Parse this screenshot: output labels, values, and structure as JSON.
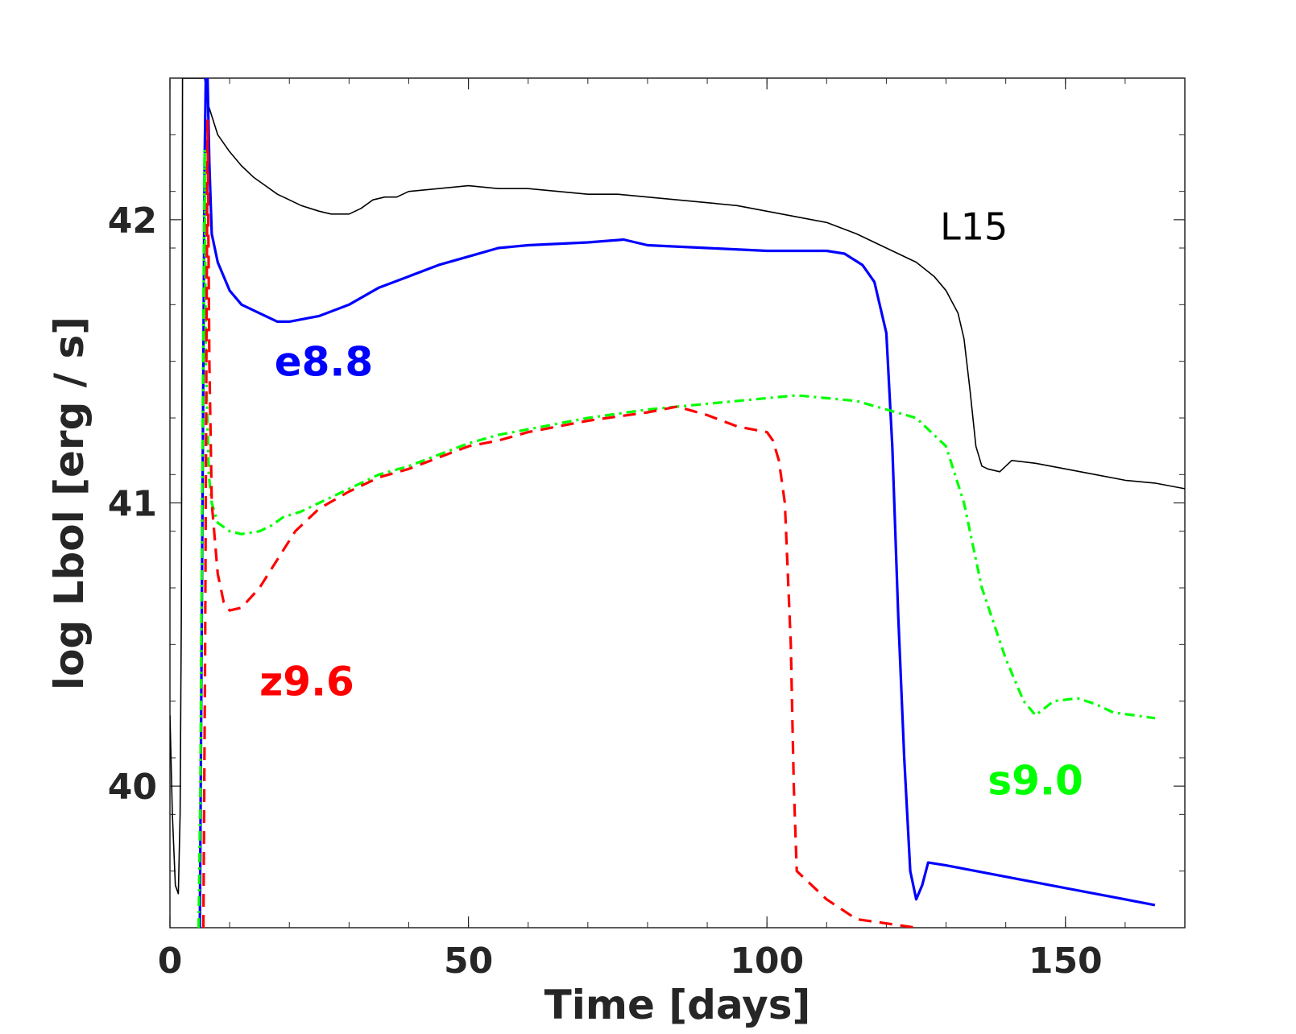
{
  "chart_data": {
    "type": "line",
    "title": "",
    "xlabel": "Time [days]",
    "ylabel": "log Lbol [erg / s]",
    "xlim": [
      0,
      170
    ],
    "ylim": [
      39.5,
      42.5
    ],
    "x_ticks": [
      0,
      50,
      100,
      150
    ],
    "y_ticks": [
      40,
      41,
      42
    ],
    "x_minor_step": 10,
    "y_minor_step": 0.2,
    "grid": false,
    "legend": "none (series labelled directly on plot)",
    "series": [
      {
        "name": "L15",
        "color": "#000000",
        "style": "solid-thin",
        "points": [
          [
            0,
            40.25
          ],
          [
            0.4,
            39.9
          ],
          [
            0.9,
            39.65
          ],
          [
            1.4,
            39.62
          ],
          [
            1.7,
            39.9
          ],
          [
            1.9,
            40.6
          ],
          [
            2.0,
            41.4
          ],
          [
            2.1,
            42.5
          ],
          [
            5.8,
            42.5
          ],
          [
            6.5,
            42.4
          ],
          [
            8,
            42.3
          ],
          [
            10,
            42.24
          ],
          [
            12,
            42.19
          ],
          [
            14,
            42.15
          ],
          [
            16,
            42.12
          ],
          [
            18,
            42.09
          ],
          [
            20,
            42.07
          ],
          [
            22,
            42.05
          ],
          [
            25,
            42.03
          ],
          [
            27,
            42.02
          ],
          [
            30,
            42.02
          ],
          [
            32,
            42.04
          ],
          [
            34,
            42.07
          ],
          [
            36,
            42.08
          ],
          [
            38,
            42.08
          ],
          [
            40,
            42.1
          ],
          [
            45,
            42.11
          ],
          [
            50,
            42.12
          ],
          [
            55,
            42.11
          ],
          [
            60,
            42.11
          ],
          [
            65,
            42.1
          ],
          [
            70,
            42.09
          ],
          [
            75,
            42.09
          ],
          [
            80,
            42.08
          ],
          [
            85,
            42.07
          ],
          [
            90,
            42.06
          ],
          [
            95,
            42.05
          ],
          [
            100,
            42.03
          ],
          [
            105,
            42.01
          ],
          [
            110,
            41.99
          ],
          [
            115,
            41.95
          ],
          [
            120,
            41.9
          ],
          [
            125,
            41.85
          ],
          [
            128,
            41.8
          ],
          [
            130,
            41.75
          ],
          [
            132,
            41.67
          ],
          [
            133,
            41.58
          ],
          [
            134,
            41.4
          ],
          [
            135,
            41.2
          ],
          [
            136,
            41.13
          ],
          [
            137,
            41.12
          ],
          [
            139,
            41.11
          ],
          [
            141,
            41.15
          ],
          [
            145,
            41.14
          ],
          [
            150,
            41.12
          ],
          [
            155,
            41.1
          ],
          [
            160,
            41.08
          ],
          [
            165,
            41.07
          ],
          [
            170,
            41.05
          ]
        ]
      },
      {
        "name": "e8.8",
        "color": "#0000ff",
        "style": "solid",
        "points": [
          [
            5.0,
            39.5
          ],
          [
            5.3,
            40.5
          ],
          [
            5.6,
            41.5
          ],
          [
            5.8,
            42.2
          ],
          [
            6.0,
            42.5
          ],
          [
            6.3,
            42.5
          ],
          [
            6.6,
            42.2
          ],
          [
            7,
            41.95
          ],
          [
            8,
            41.85
          ],
          [
            10,
            41.75
          ],
          [
            12,
            41.7
          ],
          [
            15,
            41.67
          ],
          [
            18,
            41.64
          ],
          [
            20,
            41.64
          ],
          [
            25,
            41.66
          ],
          [
            30,
            41.7
          ],
          [
            35,
            41.76
          ],
          [
            40,
            41.8
          ],
          [
            45,
            41.84
          ],
          [
            50,
            41.87
          ],
          [
            55,
            41.9
          ],
          [
            60,
            41.91
          ],
          [
            70,
            41.92
          ],
          [
            76,
            41.93
          ],
          [
            80,
            41.91
          ],
          [
            90,
            41.9
          ],
          [
            100,
            41.89
          ],
          [
            105,
            41.89
          ],
          [
            110,
            41.89
          ],
          [
            113,
            41.88
          ],
          [
            116,
            41.84
          ],
          [
            118,
            41.78
          ],
          [
            120,
            41.6
          ],
          [
            121,
            41.2
          ],
          [
            122,
            40.6
          ],
          [
            123,
            40.1
          ],
          [
            124,
            39.7
          ],
          [
            125,
            39.6
          ],
          [
            126,
            39.65
          ],
          [
            127,
            39.73
          ],
          [
            130,
            39.72
          ],
          [
            140,
            39.68
          ],
          [
            150,
            39.64
          ],
          [
            160,
            39.6
          ],
          [
            165,
            39.58
          ]
        ]
      },
      {
        "name": "s9.0",
        "color": "#00ff00",
        "style": "dashdot",
        "points": [
          [
            4.8,
            39.5
          ],
          [
            5.1,
            40.0
          ],
          [
            5.4,
            41.0
          ],
          [
            5.8,
            42.25
          ],
          [
            6.0,
            41.5
          ],
          [
            6.5,
            41.1
          ],
          [
            7,
            41.0
          ],
          [
            8,
            40.93
          ],
          [
            10,
            40.9
          ],
          [
            12,
            40.89
          ],
          [
            15,
            40.9
          ],
          [
            17,
            40.92
          ],
          [
            19,
            40.95
          ],
          [
            22,
            40.97
          ],
          [
            25,
            41.0
          ],
          [
            30,
            41.05
          ],
          [
            35,
            41.1
          ],
          [
            40,
            41.13
          ],
          [
            45,
            41.17
          ],
          [
            50,
            41.21
          ],
          [
            55,
            41.24
          ],
          [
            60,
            41.26
          ],
          [
            70,
            41.3
          ],
          [
            80,
            41.33
          ],
          [
            90,
            41.35
          ],
          [
            100,
            41.37
          ],
          [
            105,
            41.38
          ],
          [
            110,
            41.37
          ],
          [
            115,
            41.36
          ],
          [
            120,
            41.33
          ],
          [
            125,
            41.3
          ],
          [
            130,
            41.2
          ],
          [
            133,
            41.0
          ],
          [
            136,
            40.7
          ],
          [
            140,
            40.45
          ],
          [
            143,
            40.3
          ],
          [
            145,
            40.25
          ],
          [
            148,
            40.3
          ],
          [
            152,
            40.31
          ],
          [
            155,
            40.29
          ],
          [
            158,
            40.26
          ],
          [
            165,
            40.24
          ]
        ]
      },
      {
        "name": "z9.6",
        "color": "#ff0000",
        "style": "dashed",
        "points": [
          [
            5.6,
            39.5
          ],
          [
            5.9,
            40.5
          ],
          [
            6.1,
            41.5
          ],
          [
            6.3,
            42.35
          ],
          [
            6.6,
            41.5
          ],
          [
            7,
            41.0
          ],
          [
            8,
            40.75
          ],
          [
            9,
            40.65
          ],
          [
            10,
            40.62
          ],
          [
            12,
            40.63
          ],
          [
            15,
            40.7
          ],
          [
            18,
            40.8
          ],
          [
            21,
            40.9
          ],
          [
            25,
            40.98
          ],
          [
            30,
            41.04
          ],
          [
            35,
            41.09
          ],
          [
            40,
            41.12
          ],
          [
            45,
            41.16
          ],
          [
            50,
            41.2
          ],
          [
            55,
            41.22
          ],
          [
            60,
            41.25
          ],
          [
            70,
            41.29
          ],
          [
            80,
            41.32
          ],
          [
            85,
            41.34
          ],
          [
            90,
            41.31
          ],
          [
            95,
            41.27
          ],
          [
            100,
            41.25
          ],
          [
            101,
            41.22
          ],
          [
            102,
            41.15
          ],
          [
            103,
            41.0
          ],
          [
            104,
            40.5
          ],
          [
            104.5,
            40.0
          ],
          [
            105,
            39.7
          ],
          [
            106,
            39.68
          ],
          [
            110,
            39.6
          ],
          [
            115,
            39.53
          ],
          [
            125,
            39.5
          ]
        ]
      }
    ],
    "annotations": [
      {
        "text": "L15",
        "x": 129,
        "y": 41.93,
        "color": "#000000",
        "weight": "normal"
      },
      {
        "text": "e8.8",
        "x": 17.5,
        "y": 41.45,
        "color": "#0000ff",
        "weight": "bold"
      },
      {
        "text": "z9.6",
        "x": 15,
        "y": 40.32,
        "color": "#ff0000",
        "weight": "bold"
      },
      {
        "text": "s9.0",
        "x": 137,
        "y": 39.97,
        "color": "#00ff00",
        "weight": "bold"
      }
    ]
  }
}
